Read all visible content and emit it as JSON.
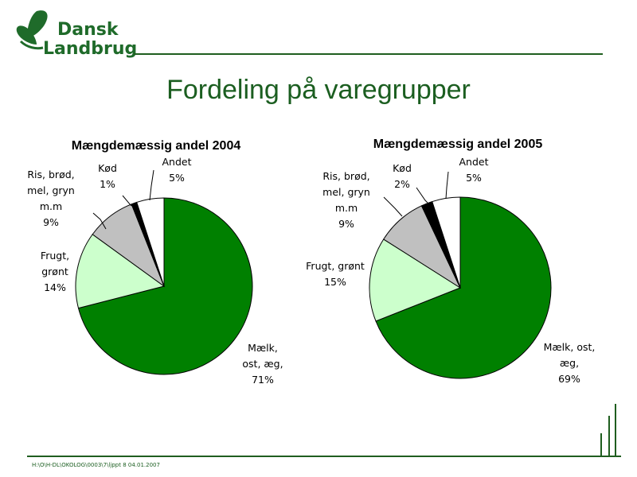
{
  "logo": {
    "line1": "Dansk",
    "line2": "Landbrug"
  },
  "page_title": "Fordeling på varegrupper",
  "footer": "H:\\O\\H-DL\\OKOLOG\\0003\\7\\ljppt  8  04.01.2007",
  "colors": {
    "mealk": "#008000",
    "frugt": "#ccffcc",
    "ris": "#c0c0c0",
    "koed": "#000000",
    "andet": "#ffffff",
    "accent": "#1b5e20"
  },
  "chart_data": [
    {
      "type": "pie",
      "title": "Mængdemæssig andel 2004",
      "categories": [
        "Mælk, ost, æg",
        "Frugt, grønt",
        "Ris, brød, mel, gryn m.m",
        "Kød",
        "Andet"
      ],
      "values": [
        71,
        14,
        9,
        1,
        5
      ],
      "labels": [
        [
          "Mælk,",
          "ost, æg,",
          "71%"
        ],
        [
          "Frugt,",
          "grønt",
          "14%"
        ],
        [
          "Ris, brød,",
          "mel, gryn",
          "m.m",
          "9%"
        ],
        [
          "Kød",
          "1%"
        ],
        [
          "Andet",
          "5%"
        ]
      ]
    },
    {
      "type": "pie",
      "title": "Mængdemæssig andel 2005",
      "categories": [
        "Mælk, ost, æg",
        "Frugt, grønt",
        "Ris, brød, mel, gryn m.m",
        "Kød",
        "Andet"
      ],
      "values": [
        69,
        15,
        9,
        2,
        5
      ],
      "labels": [
        [
          "Mælk, ost,",
          "æg,",
          "69%"
        ],
        [
          "Frugt, grønt",
          "15%"
        ],
        [
          "Ris, brød,",
          "mel, gryn",
          "m.m",
          "9%"
        ],
        [
          "Kød",
          "2%"
        ],
        [
          "Andet",
          "5%"
        ]
      ]
    }
  ]
}
